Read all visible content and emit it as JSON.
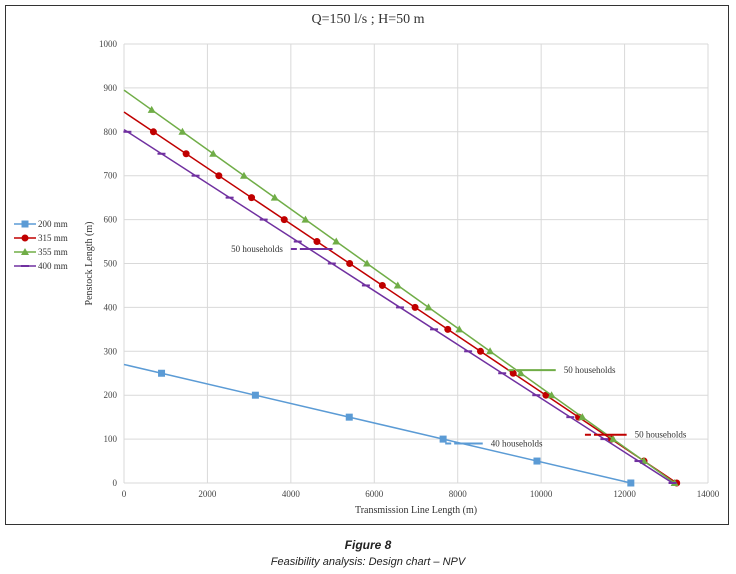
{
  "caption": {
    "figure": "Figure 8",
    "subtitle": "Feasibility analysis: Design chart – NPV"
  },
  "chart_data": {
    "type": "line",
    "title": "Q=150 l/s ; H=50 m",
    "xlabel": "Transmission Line Length (m)",
    "ylabel": "Penstock Length (m)",
    "xlim": [
      0,
      14000
    ],
    "ylim": [
      0,
      1000
    ],
    "xticks": [
      0,
      2000,
      4000,
      6000,
      8000,
      10000,
      12000,
      14000
    ],
    "yticks": [
      0,
      100,
      200,
      300,
      400,
      500,
      600,
      700,
      800,
      900,
      1000
    ],
    "grid": true,
    "legend_position": "left",
    "series": [
      {
        "name": "200 mm",
        "color": "#5b9bd5",
        "marker": "square",
        "start": [
          0,
          270
        ],
        "end": [
          12150,
          0
        ],
        "marker_y": [
          250,
          200,
          150,
          100,
          50,
          0
        ]
      },
      {
        "name": "315 mm",
        "color": "#c00000",
        "marker": "circle",
        "start": [
          0,
          845
        ],
        "end": [
          13250,
          0
        ],
        "marker_y": [
          800,
          750,
          700,
          650,
          600,
          550,
          500,
          450,
          400,
          350,
          300,
          250,
          200,
          150,
          100,
          50,
          0
        ]
      },
      {
        "name": "355 mm",
        "color": "#70ad47",
        "marker": "triangle",
        "start": [
          0,
          895
        ],
        "end": [
          13200,
          0
        ],
        "marker_y": [
          850,
          800,
          750,
          700,
          650,
          600,
          550,
          500,
          450,
          400,
          350,
          300,
          250,
          200,
          150,
          100,
          50,
          0
        ]
      },
      {
        "name": "400 mm",
        "color": "#7030a0",
        "marker": "dash",
        "start": [
          0,
          805
        ],
        "end": [
          13150,
          0
        ],
        "marker_y": [
          800,
          750,
          700,
          650,
          600,
          550,
          500,
          450,
          400,
          350,
          300,
          250,
          200,
          150,
          100,
          50,
          0
        ]
      }
    ],
    "annotations": [
      {
        "text": "50 households",
        "series": "400 mm",
        "at": [
          4000,
          533
        ],
        "to": [
          5000,
          533
        ],
        "label_side": "left"
      },
      {
        "text": "50 households",
        "series": "355 mm",
        "at": [
          9200,
          257
        ],
        "to": [
          10350,
          257
        ],
        "label_side": "right"
      },
      {
        "text": "50 households",
        "series": "315 mm",
        "at": [
          11050,
          110
        ],
        "to": [
          12050,
          110
        ],
        "label_side": "right"
      },
      {
        "text": "40 households",
        "series": "200 mm",
        "at": [
          7700,
          90
        ],
        "to": [
          8600,
          90
        ],
        "label_side": "right"
      }
    ]
  }
}
